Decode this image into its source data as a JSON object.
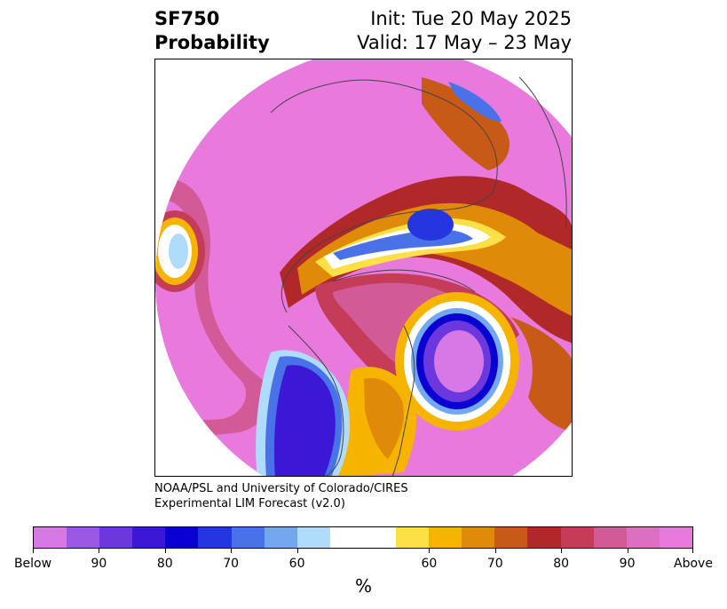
{
  "header": {
    "variable": "SF750",
    "subtitle": "Probability",
    "init": "Init: Tue 20 May 2025",
    "valid": "Valid: 17 May – 23 May"
  },
  "credit": {
    "line1": "NOAA/PSL and University of Colorado/CIRES",
    "line2": "Experimental LIM Forecast (v2.0)"
  },
  "colorbar": {
    "colors": [
      "#d877e6",
      "#9b58e2",
      "#6a38dc",
      "#3a18d6",
      "#0a00d0",
      "#2436df",
      "#4a72e8",
      "#72a8ef",
      "#b0dcfb",
      "#ffffff",
      "#ffffff",
      "#fde045",
      "#f4b400",
      "#e08a0a",
      "#c85a18",
      "#b02828",
      "#c43c58",
      "#d25a96",
      "#de6ec0",
      "#e87ade"
    ],
    "ticks": [
      {
        "label": "Below",
        "frac": 0.0
      },
      {
        "label": "90",
        "frac": 0.1
      },
      {
        "label": "80",
        "frac": 0.2
      },
      {
        "label": "70",
        "frac": 0.3
      },
      {
        "label": "60",
        "frac": 0.4
      },
      {
        "label": "60",
        "frac": 0.6
      },
      {
        "label": "70",
        "frac": 0.7
      },
      {
        "label": "80",
        "frac": 0.8
      },
      {
        "label": "90",
        "frac": 0.9
      },
      {
        "label": "Above",
        "frac": 1.0
      }
    ],
    "unit": "%"
  },
  "map": {
    "projection": "north-polar-stereographic",
    "palette": {
      "magenta": "#e87ade",
      "pink": "#d25a96",
      "rose": "#c43c58",
      "red": "#b02828",
      "rust": "#c85a18",
      "orange": "#e08a0a",
      "gold": "#f4b400",
      "yellow": "#fde045",
      "white": "#ffffff",
      "paleblue": "#b0dcfb",
      "lightblue": "#72a8ef",
      "blue": "#4a72e8",
      "royal": "#2436df",
      "navy": "#0a00d0",
      "indigo": "#3a18d6",
      "violet": "#6a38dc",
      "purple": "#9b58e2",
      "lilac": "#d877e6"
    }
  }
}
